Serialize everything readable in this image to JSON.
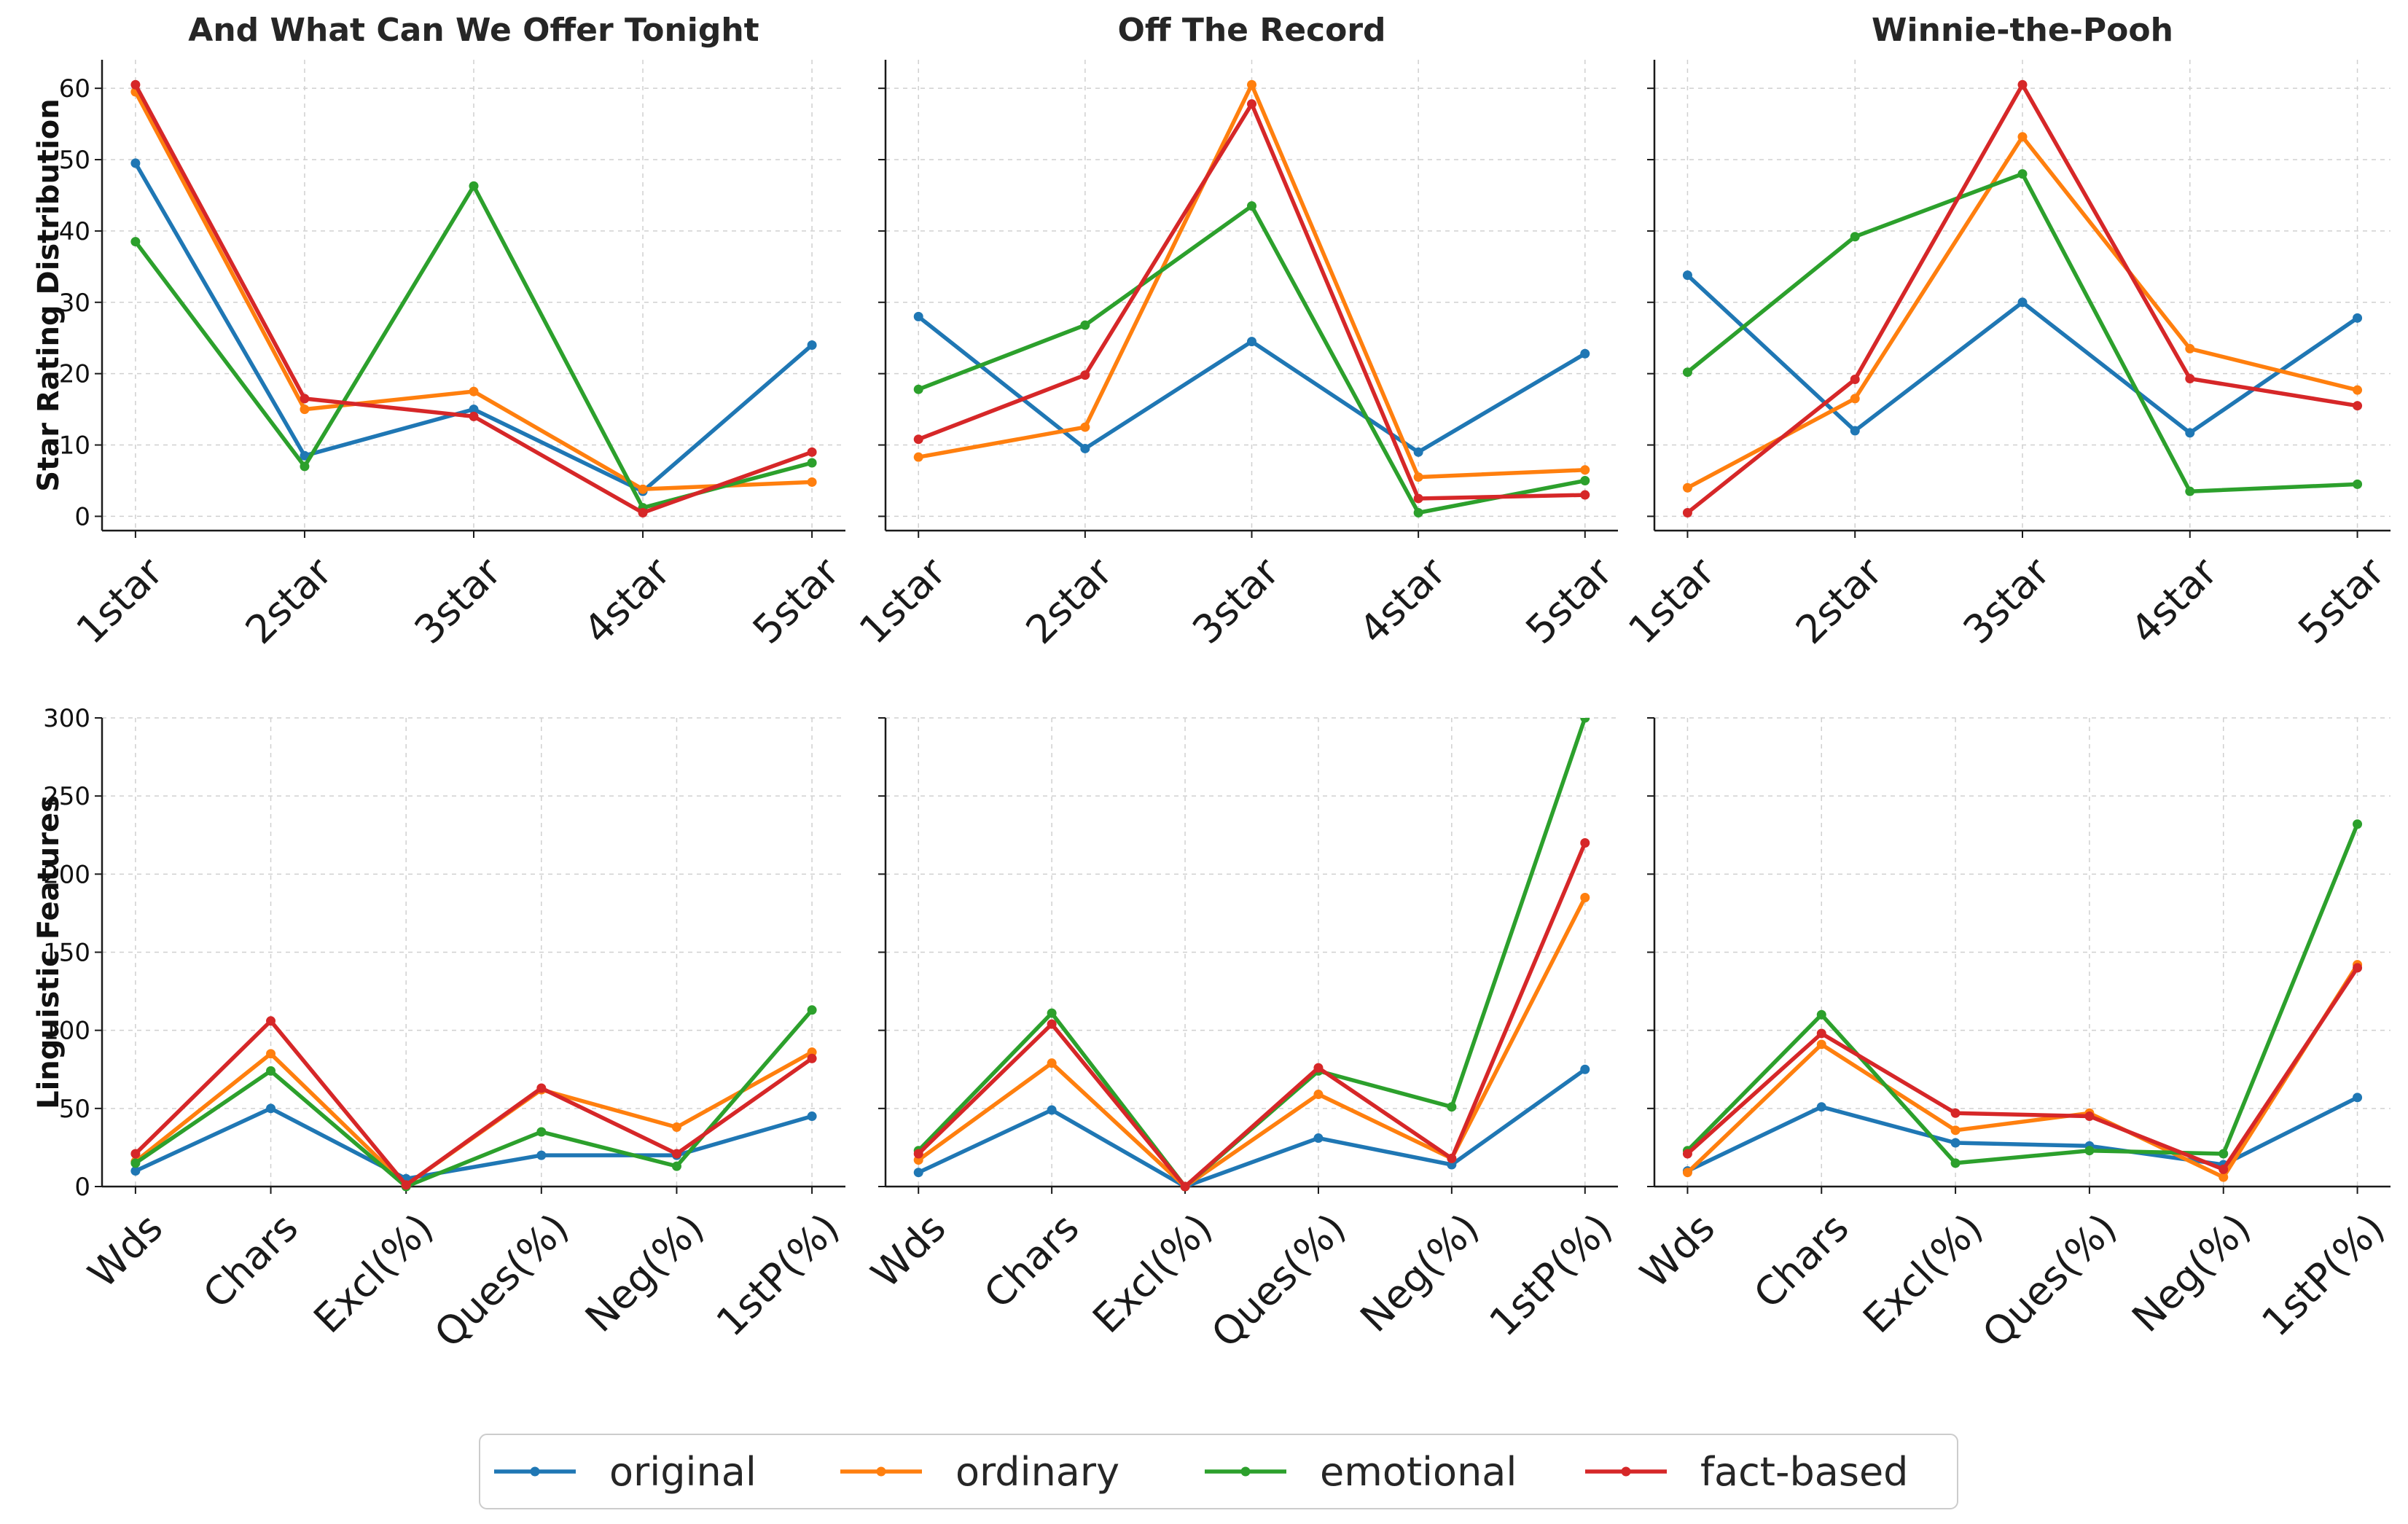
{
  "chart_data": {
    "type": "line",
    "rows": [
      {
        "ylabel": "Star Rating Distribution",
        "ylim": [
          -2,
          64
        ],
        "yticks": [
          0,
          10,
          20,
          30,
          40,
          50,
          60
        ],
        "categories": [
          "1star",
          "2star",
          "3star",
          "4star",
          "5star"
        ]
      },
      {
        "ylabel": "Linguistic Features",
        "ylim": [
          0,
          300
        ],
        "yticks": [
          0,
          50,
          100,
          150,
          200,
          250,
          300
        ],
        "categories": [
          "Wds",
          "Chars",
          "Excl(%)",
          "Ques(%)",
          "Neg(%)",
          "1stP(%)"
        ]
      }
    ],
    "columns": [
      "And What Can We Offer Tonight",
      "Off The Record",
      "Winnie-the-Pooh"
    ],
    "series_names": [
      "original",
      "ordinary",
      "emotional",
      "fact-based"
    ],
    "colors": {
      "original": "#1f77b4",
      "ordinary": "#ff7f0e",
      "emotional": "#2ca02c",
      "fact-based": "#d62728"
    },
    "panels": [
      {
        "row": 0,
        "col": 0,
        "series": [
          {
            "name": "original",
            "values": [
              49.5,
              8.5,
              15.0,
              3.5,
              24.0
            ]
          },
          {
            "name": "ordinary",
            "values": [
              59.5,
              15.0,
              17.5,
              3.8,
              4.8
            ]
          },
          {
            "name": "emotional",
            "values": [
              38.5,
              7.0,
              46.3,
              1.2,
              7.5
            ]
          },
          {
            "name": "fact-based",
            "values": [
              60.5,
              16.5,
              14.0,
              0.5,
              9.0
            ]
          }
        ]
      },
      {
        "row": 0,
        "col": 1,
        "series": [
          {
            "name": "original",
            "values": [
              28.0,
              9.5,
              24.5,
              9.0,
              22.8
            ]
          },
          {
            "name": "ordinary",
            "values": [
              8.3,
              12.5,
              60.5,
              5.5,
              6.5
            ]
          },
          {
            "name": "emotional",
            "values": [
              17.8,
              26.8,
              43.5,
              0.5,
              5.0
            ]
          },
          {
            "name": "fact-based",
            "values": [
              10.8,
              19.8,
              57.8,
              2.5,
              3.0
            ]
          }
        ]
      },
      {
        "row": 0,
        "col": 2,
        "series": [
          {
            "name": "original",
            "values": [
              33.8,
              12.0,
              30.0,
              11.7,
              27.8
            ]
          },
          {
            "name": "ordinary",
            "values": [
              4.0,
              16.5,
              53.2,
              23.5,
              17.7
            ]
          },
          {
            "name": "emotional",
            "values": [
              20.2,
              39.2,
              48.0,
              3.5,
              4.5
            ]
          },
          {
            "name": "fact-based",
            "values": [
              0.5,
              19.2,
              60.5,
              19.3,
              15.5
            ]
          }
        ]
      },
      {
        "row": 1,
        "col": 0,
        "series": [
          {
            "name": "original",
            "values": [
              10,
              50,
              5,
              20,
              20,
              45
            ]
          },
          {
            "name": "ordinary",
            "values": [
              16,
              85,
              1,
              62,
              38,
              86
            ]
          },
          {
            "name": "emotional",
            "values": [
              15,
              74,
              0,
              35,
              13,
              113
            ]
          },
          {
            "name": "fact-based",
            "values": [
              21,
              106,
              1,
              63,
              21,
              82
            ]
          }
        ]
      },
      {
        "row": 1,
        "col": 1,
        "series": [
          {
            "name": "original",
            "values": [
              9,
              49,
              0,
              31,
              14,
              75
            ]
          },
          {
            "name": "ordinary",
            "values": [
              17,
              79,
              0,
              59,
              18,
              185
            ]
          },
          {
            "name": "emotional",
            "values": [
              23,
              111,
              0,
              74,
              51,
              300
            ]
          },
          {
            "name": "fact-based",
            "values": [
              21,
              104,
              0,
              76,
              18,
              220
            ]
          }
        ]
      },
      {
        "row": 1,
        "col": 2,
        "series": [
          {
            "name": "original",
            "values": [
              10,
              51,
              28,
              26,
              14,
              57
            ]
          },
          {
            "name": "ordinary",
            "values": [
              9,
              91,
              36,
              47,
              6,
              142
            ]
          },
          {
            "name": "emotional",
            "values": [
              23,
              110,
              15,
              23,
              21,
              232
            ]
          },
          {
            "name": "fact-based",
            "values": [
              21,
              98,
              47,
              45,
              11,
              140
            ]
          }
        ]
      }
    ],
    "legend": {
      "placement": "bottom-center",
      "entries": [
        "original",
        "ordinary",
        "emotional",
        "fact-based"
      ]
    },
    "grid": true
  }
}
